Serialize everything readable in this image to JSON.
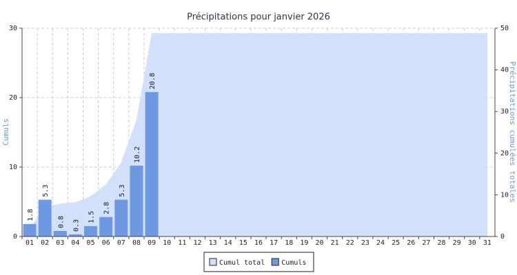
{
  "chart_data": {
    "type": "bar",
    "title": "Précipitations pour janvier 2026",
    "y_label": "Cumuls",
    "y2_label": "Précipitations cumulées totales",
    "categories": [
      "01",
      "02",
      "03",
      "04",
      "05",
      "06",
      "07",
      "08",
      "09",
      "10",
      "11",
      "12",
      "13",
      "14",
      "15",
      "16",
      "17",
      "18",
      "19",
      "20",
      "21",
      "22",
      "23",
      "24",
      "25",
      "26",
      "27",
      "28",
      "29",
      "30",
      "31"
    ],
    "series": [
      {
        "name": "Cumul total",
        "type": "area",
        "axis": "y2",
        "color": "#d3e0fa",
        "values": [
          1.8,
          7.1,
          7.9,
          8.2,
          9.7,
          12.5,
          17.8,
          28.0,
          48.8,
          48.8,
          48.8,
          48.8,
          48.8,
          48.8,
          48.8,
          48.8,
          48.8,
          48.8,
          48.8,
          48.8,
          48.8,
          48.8,
          48.8,
          48.8,
          48.8,
          48.8,
          48.8,
          48.8,
          48.8,
          48.8,
          48.8
        ]
      },
      {
        "name": "Cumuls",
        "type": "bar",
        "color": "#6e98e0",
        "values": [
          1.8,
          5.3,
          0.8,
          0.3,
          1.5,
          2.8,
          5.3,
          10.2,
          20.8,
          null,
          null,
          null,
          null,
          null,
          null,
          null,
          null,
          null,
          null,
          null,
          null,
          null,
          null,
          null,
          null,
          null,
          null,
          null,
          null,
          null,
          null
        ]
      }
    ],
    "ylim": [
      0,
      30
    ],
    "yticks": [
      0,
      10,
      20,
      30
    ],
    "y2lim": [
      0,
      50
    ],
    "y2ticks": [
      0,
      10,
      20,
      30,
      40,
      50
    ],
    "grid": true,
    "legend": "bottom"
  }
}
